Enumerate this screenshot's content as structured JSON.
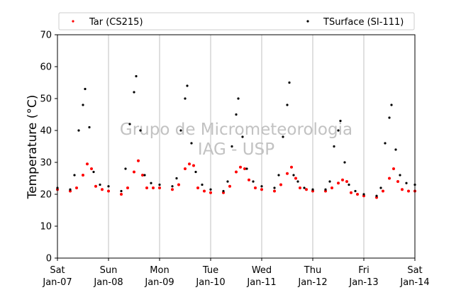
{
  "colors": {
    "tar": "#ff0000",
    "tsurface": "#000000",
    "grid": "#b0b0b0"
  },
  "watermark": {
    "line1": "Grupo de Micrometeorologia",
    "line2": "IAG - USP"
  },
  "chart_data": {
    "type": "scatter",
    "title": "",
    "ylabel": "Temperature (°C)",
    "xlabel": "",
    "ylim": [
      0,
      70
    ],
    "y_ticks": [
      "0",
      "10",
      "20",
      "30",
      "40",
      "50",
      "60",
      "70"
    ],
    "x_ticks": [
      {
        "day": "Sat",
        "date": "Jan-07"
      },
      {
        "day": "Sun",
        "date": "Jan-08"
      },
      {
        "day": "Mon",
        "date": "Jan-09"
      },
      {
        "day": "Tue",
        "date": "Jan-10"
      },
      {
        "day": "Wed",
        "date": "Jan-11"
      },
      {
        "day": "Thu",
        "date": "Jan-12"
      },
      {
        "day": "Fri",
        "date": "Jan-13"
      },
      {
        "day": "Sat",
        "date": "Jan-14"
      }
    ],
    "grid": "vertical",
    "legend_position": "top",
    "series": [
      {
        "name": "Tar (CS215)",
        "color": "#ff0000",
        "x": [
          "Jan-07 00:00",
          "Jan-07 06:00",
          "Jan-07 09:00",
          "Jan-07 12:00",
          "Jan-07 14:00",
          "Jan-07 16:00",
          "Jan-07 18:00",
          "Jan-07 21:00",
          "Jan-08 00:00",
          "Jan-08 06:00",
          "Jan-08 09:00",
          "Jan-08 12:00",
          "Jan-08 14:00",
          "Jan-08 16:00",
          "Jan-08 18:00",
          "Jan-08 21:00",
          "Jan-09 00:00",
          "Jan-09 06:00",
          "Jan-09 09:00",
          "Jan-09 12:00",
          "Jan-09 14:00",
          "Jan-09 16:00",
          "Jan-09 18:00",
          "Jan-09 21:00",
          "Jan-10 00:00",
          "Jan-10 06:00",
          "Jan-10 09:00",
          "Jan-10 12:00",
          "Jan-10 14:00",
          "Jan-10 16:00",
          "Jan-10 18:00",
          "Jan-10 21:00",
          "Jan-11 00:00",
          "Jan-11 06:00",
          "Jan-11 09:00",
          "Jan-11 12:00",
          "Jan-11 14:00",
          "Jan-11 16:00",
          "Jan-11 18:00",
          "Jan-11 21:00",
          "Jan-12 00:00",
          "Jan-12 06:00",
          "Jan-12 09:00",
          "Jan-12 12:00",
          "Jan-12 14:00",
          "Jan-12 16:00",
          "Jan-12 18:00",
          "Jan-12 21:00",
          "Jan-13 00:00",
          "Jan-13 06:00",
          "Jan-13 09:00",
          "Jan-13 12:00",
          "Jan-13 14:00",
          "Jan-13 16:00",
          "Jan-13 18:00",
          "Jan-13 21:00",
          "Jan-14 00:00"
        ],
        "y": [
          21.5,
          21,
          22,
          26,
          29.5,
          28,
          22.5,
          21.5,
          21,
          20,
          22,
          27,
          30.5,
          26,
          22,
          22,
          22,
          21.5,
          23,
          28,
          29.5,
          29,
          22,
          21,
          20.5,
          20.5,
          22.5,
          27,
          28.5,
          28,
          24.5,
          22,
          21.5,
          21,
          23,
          26.5,
          28.5,
          25,
          22,
          21.5,
          21,
          21,
          22,
          23.5,
          24.5,
          24,
          20.5,
          20,
          19.5,
          19,
          21,
          25,
          28,
          24,
          21.5,
          21,
          21
        ]
      },
      {
        "name": "TSurface (SI-111)",
        "color": "#000000",
        "x": [
          "Jan-07 00:00",
          "Jan-07 06:00",
          "Jan-07 08:00",
          "Jan-07 10:00",
          "Jan-07 12:00",
          "Jan-07 13:00",
          "Jan-07 15:00",
          "Jan-07 17:00",
          "Jan-07 20:00",
          "Jan-08 00:00",
          "Jan-08 06:00",
          "Jan-08 08:00",
          "Jan-08 10:00",
          "Jan-08 12:00",
          "Jan-08 13:00",
          "Jan-08 15:00",
          "Jan-08 17:00",
          "Jan-08 20:00",
          "Jan-09 00:00",
          "Jan-09 06:00",
          "Jan-09 08:00",
          "Jan-09 10:00",
          "Jan-09 12:00",
          "Jan-09 13:00",
          "Jan-09 15:00",
          "Jan-09 17:00",
          "Jan-09 20:00",
          "Jan-10 00:00",
          "Jan-10 06:00",
          "Jan-10 08:00",
          "Jan-10 10:00",
          "Jan-10 12:00",
          "Jan-10 13:00",
          "Jan-10 15:00",
          "Jan-10 17:00",
          "Jan-10 20:00",
          "Jan-11 00:00",
          "Jan-11 06:00",
          "Jan-11 08:00",
          "Jan-11 10:00",
          "Jan-11 12:00",
          "Jan-11 13:00",
          "Jan-11 15:00",
          "Jan-11 17:00",
          "Jan-11 20:00",
          "Jan-12 00:00",
          "Jan-12 06:00",
          "Jan-12 08:00",
          "Jan-12 10:00",
          "Jan-12 12:00",
          "Jan-12 13:00",
          "Jan-12 15:00",
          "Jan-12 17:00",
          "Jan-12 20:00",
          "Jan-13 00:00",
          "Jan-13 06:00",
          "Jan-13 08:00",
          "Jan-13 10:00",
          "Jan-13 12:00",
          "Jan-13 13:00",
          "Jan-13 15:00",
          "Jan-13 17:00",
          "Jan-13 20:00",
          "Jan-14 00:00"
        ],
        "y": [
          22,
          21.5,
          26,
          40,
          48,
          53,
          41,
          27,
          23,
          22.5,
          21,
          28,
          42,
          52,
          57,
          40,
          26,
          23.5,
          23,
          22.5,
          25,
          40,
          50,
          54,
          36,
          27,
          23,
          21.5,
          21,
          24,
          35,
          45,
          50,
          38,
          28,
          24,
          22.5,
          22,
          26,
          38,
          48,
          55,
          26,
          24,
          22,
          21.5,
          21.5,
          24,
          35,
          40,
          43,
          30,
          23,
          21,
          20,
          19.5,
          22,
          36,
          44,
          48,
          34,
          26,
          23.5,
          23
        ]
      }
    ]
  }
}
